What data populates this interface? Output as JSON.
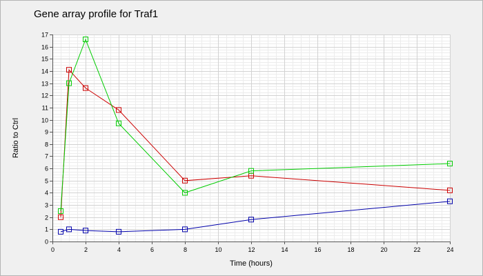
{
  "chart_data": {
    "type": "line",
    "title": "Gene array profile for Traf1",
    "xlabel": "Time (hours)",
    "ylabel": "Ratio to Ctrl",
    "xlim": [
      0,
      24
    ],
    "ylim": [
      0,
      17
    ],
    "x_ticks": [
      0,
      2,
      4,
      6,
      8,
      10,
      12,
      14,
      16,
      18,
      20,
      22,
      24
    ],
    "y_ticks": [
      0,
      1,
      2,
      3,
      4,
      5,
      6,
      7,
      8,
      9,
      10,
      11,
      12,
      13,
      14,
      15,
      16,
      17
    ],
    "grid": true,
    "legend": "none",
    "series": [
      {
        "color": "#cc0000",
        "points": [
          [
            0.5,
            2.0
          ],
          [
            1,
            14.1
          ],
          [
            2,
            12.6
          ],
          [
            4,
            10.8
          ],
          [
            8,
            5.0
          ],
          [
            12,
            5.4
          ],
          [
            24,
            4.2
          ]
        ]
      },
      {
        "color": "#00cc00",
        "points": [
          [
            0.5,
            2.5
          ],
          [
            1,
            13.0
          ],
          [
            2,
            16.6
          ],
          [
            4,
            9.7
          ],
          [
            8,
            4.0
          ],
          [
            12,
            5.8
          ],
          [
            24,
            6.4
          ]
        ]
      },
      {
        "color": "#0000aa",
        "points": [
          [
            0.5,
            0.8
          ],
          [
            1,
            1.0
          ],
          [
            2,
            0.9
          ],
          [
            4,
            0.8
          ],
          [
            8,
            1.0
          ],
          [
            12,
            1.8
          ],
          [
            24,
            3.3
          ]
        ]
      }
    ]
  }
}
